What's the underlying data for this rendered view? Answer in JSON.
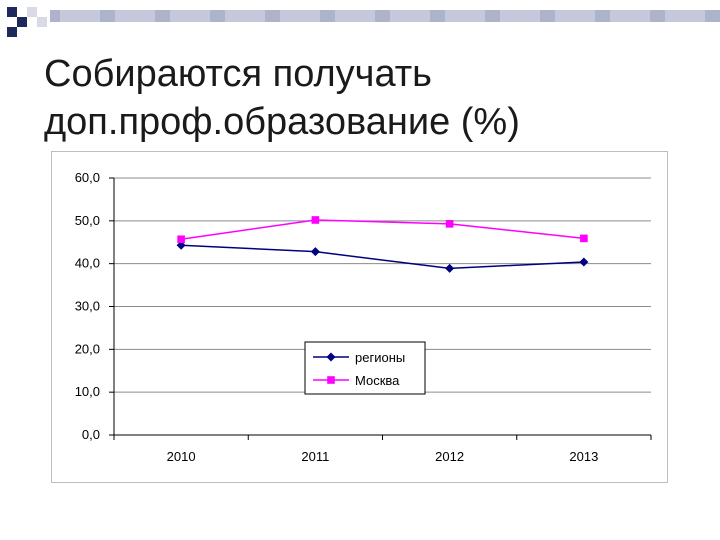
{
  "slide": {
    "title_line1": "Собираются получать",
    "title_line2": "доп.проф.образование (%)"
  },
  "chart_data": {
    "type": "line",
    "title": "Собираются получать доп.проф.образование (%)",
    "xlabel": "",
    "ylabel": "",
    "categories": [
      "2010",
      "2011",
      "2012",
      "2013"
    ],
    "ylim": [
      0,
      60
    ],
    "yticks": [
      "0,0",
      "10,0",
      "20,0",
      "30,0",
      "40,0",
      "50,0",
      "60,0"
    ],
    "grid": true,
    "legend_position": "center",
    "series": [
      {
        "name": "регионы",
        "values": [
          44.3,
          42.8,
          38.9,
          40.4
        ],
        "color": "#000080",
        "marker": "diamond"
      },
      {
        "name": "Москва",
        "values": [
          45.7,
          50.2,
          49.3,
          45.9
        ],
        "color": "#ff00ff",
        "marker": "square"
      }
    ]
  },
  "colors": {
    "deco_dark": "#1f2a5c",
    "deco_light": "#9aa0bd",
    "grid": "#8c8c8c"
  }
}
